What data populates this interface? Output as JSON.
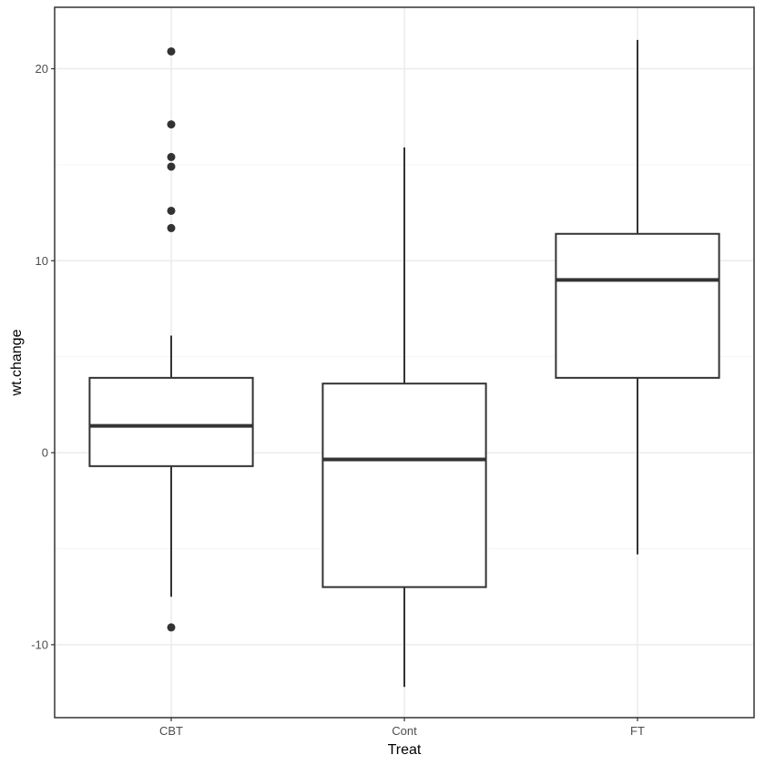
{
  "chart_data": {
    "type": "box",
    "xlabel": "Treat",
    "ylabel": "wt.change",
    "ylim": [
      -13.8,
      23.2
    ],
    "y_ticks": [
      -10,
      0,
      10,
      20
    ],
    "y_tick_labels": [
      "-10",
      "0",
      "10",
      "20"
    ],
    "categories": [
      "CBT",
      "Cont",
      "FT"
    ],
    "boxes": [
      {
        "category": "CBT",
        "lower_whisker": -7.5,
        "q1": -0.7,
        "median": 1.4,
        "q3": 3.9,
        "upper_whisker": 6.1,
        "outliers": [
          20.9,
          17.1,
          15.4,
          14.9,
          12.6,
          11.7,
          -9.1
        ]
      },
      {
        "category": "Cont",
        "lower_whisker": -12.2,
        "q1": -7.0,
        "median": -0.35,
        "q3": 3.6,
        "upper_whisker": 15.9,
        "outliers": []
      },
      {
        "category": "FT",
        "lower_whisker": -5.3,
        "q1": 3.9,
        "median": 9.0,
        "q3": 11.4,
        "upper_whisker": 21.5,
        "outliers": []
      }
    ],
    "grid": true,
    "colors": {
      "box_stroke": "#333333",
      "panel_border": "#333333",
      "grid_major": "#ebebeb",
      "grid_minor": "#f5f5f5"
    }
  }
}
